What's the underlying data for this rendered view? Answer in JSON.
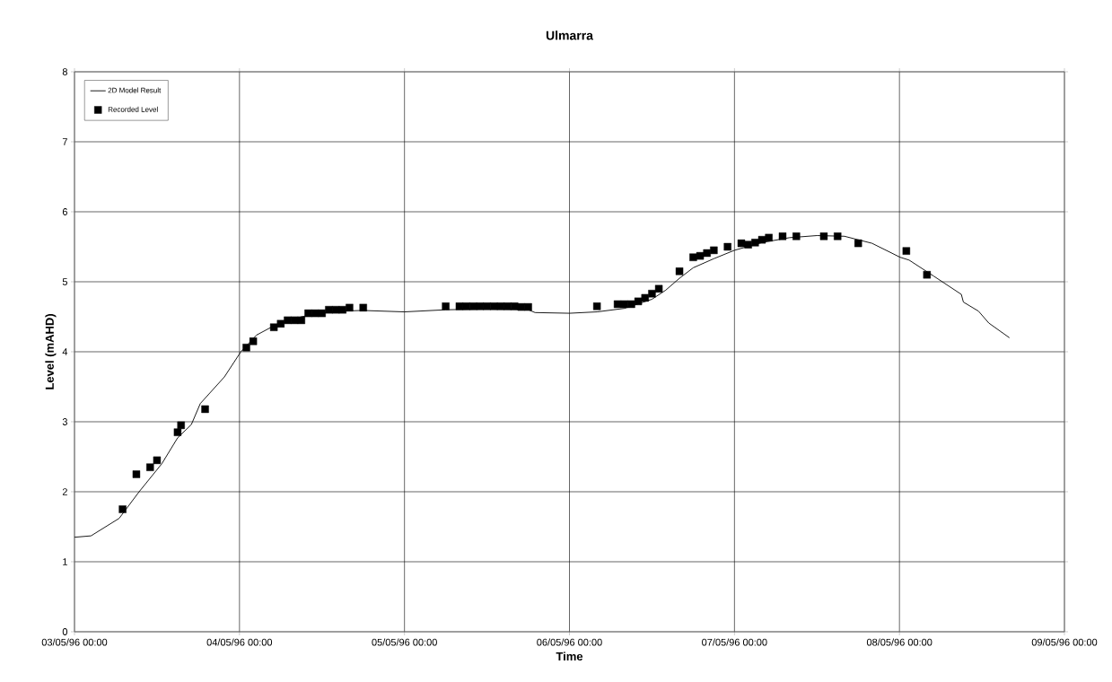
{
  "chart_data": {
    "type": "line",
    "title": "Ulmarra",
    "xlabel": "Time",
    "ylabel": "Level (mAHD)",
    "xlim": [
      "1996-05-03T00:00",
      "1996-05-09T00:00"
    ],
    "xticks": [
      {
        "value": "1996-05-03T00:00",
        "label": "03/05/96 00:00"
      },
      {
        "value": "1996-05-04T00:00",
        "label": "04/05/96 00:00"
      },
      {
        "value": "1996-05-05T00:00",
        "label": "05/05/96 00:00"
      },
      {
        "value": "1996-05-06T00:00",
        "label": "06/05/96 00:00"
      },
      {
        "value": "1996-05-07T00:00",
        "label": "07/05/96 00:00"
      },
      {
        "value": "1996-05-08T00:00",
        "label": "08/05/96 00:00"
      },
      {
        "value": "1996-05-09T00:00",
        "label": "09/05/96 00:00"
      }
    ],
    "ylim": [
      0,
      8
    ],
    "yticks": [
      0,
      1,
      2,
      3,
      4,
      5,
      6,
      7,
      8
    ],
    "grid": true,
    "legend": "top left",
    "series": [
      {
        "name": "2D Model Result",
        "type": "line",
        "marker": "none",
        "color": "#000000",
        "x": [
          "1996-05-03T00:00",
          "1996-05-03T02:24",
          "1996-05-03T06:30",
          "1996-05-03T09:24",
          "1996-05-03T12:42",
          "1996-05-03T15:00",
          "1996-05-03T17:00",
          "1996-05-03T18:18",
          "1996-05-03T21:48",
          "1996-05-04T00:12",
          "1996-05-04T02:30",
          "1996-05-04T05:00",
          "1996-05-04T09:00",
          "1996-05-04T14:00",
          "1996-05-04T18:00",
          "1996-05-05T00:00",
          "1996-05-05T06:00",
          "1996-05-05T12:00",
          "1996-05-05T18:00",
          "1996-05-05T19:00",
          "1996-05-06T00:00",
          "1996-05-06T04:00",
          "1996-05-06T08:00",
          "1996-05-06T12:00",
          "1996-05-06T14:00",
          "1996-05-06T16:00",
          "1996-05-06T18:00",
          "1996-05-06T21:00",
          "1996-05-07T00:00",
          "1996-05-07T04:00",
          "1996-05-07T08:00",
          "1996-05-07T12:00",
          "1996-05-07T16:00",
          "1996-05-07T20:00",
          "1996-05-08T00:06",
          "1996-05-08T01:24",
          "1996-05-08T05:00",
          "1996-05-08T09:00",
          "1996-05-08T09:18",
          "1996-05-08T11:30",
          "1996-05-08T13:00",
          "1996-05-08T16:00"
        ],
        "values": [
          1.35,
          1.37,
          1.62,
          2.0,
          2.4,
          2.77,
          2.96,
          3.26,
          3.64,
          4.0,
          4.24,
          4.37,
          4.5,
          4.58,
          4.59,
          4.57,
          4.6,
          4.61,
          4.6,
          4.56,
          4.55,
          4.57,
          4.62,
          4.75,
          4.88,
          5.05,
          5.2,
          5.33,
          5.45,
          5.56,
          5.63,
          5.66,
          5.65,
          5.55,
          5.35,
          5.31,
          5.08,
          4.82,
          4.71,
          4.58,
          4.41,
          4.2
        ]
      },
      {
        "name": "Recorded Level",
        "type": "scatter",
        "marker": "square",
        "color": "#000000",
        "x": [
          "1996-05-03T07:00",
          "1996-05-03T09:00",
          "1996-05-03T11:00",
          "1996-05-03T12:00",
          "1996-05-03T15:00",
          "1996-05-03T15:30",
          "1996-05-03T19:00",
          "1996-05-04T01:00",
          "1996-05-04T02:00",
          "1996-05-04T05:00",
          "1996-05-04T06:00",
          "1996-05-04T07:00",
          "1996-05-04T08:00",
          "1996-05-04T09:00",
          "1996-05-04T10:00",
          "1996-05-04T11:00",
          "1996-05-04T12:00",
          "1996-05-04T13:00",
          "1996-05-04T14:00",
          "1996-05-04T15:00",
          "1996-05-04T16:00",
          "1996-05-04T18:00",
          "1996-05-05T06:00",
          "1996-05-05T08:00",
          "1996-05-05T09:00",
          "1996-05-05T10:00",
          "1996-05-05T11:00",
          "1996-05-05T12:00",
          "1996-05-05T13:00",
          "1996-05-05T14:00",
          "1996-05-05T15:00",
          "1996-05-05T16:00",
          "1996-05-05T17:00",
          "1996-05-05T18:00",
          "1996-05-06T04:00",
          "1996-05-06T07:00",
          "1996-05-06T08:00",
          "1996-05-06T09:00",
          "1996-05-06T10:00",
          "1996-05-06T11:00",
          "1996-05-06T12:00",
          "1996-05-06T13:00",
          "1996-05-06T16:00",
          "1996-05-06T18:00",
          "1996-05-06T19:00",
          "1996-05-06T20:00",
          "1996-05-06T21:00",
          "1996-05-06T23:00",
          "1996-05-07T01:00",
          "1996-05-07T02:00",
          "1996-05-07T03:00",
          "1996-05-07T04:00",
          "1996-05-07T05:00",
          "1996-05-07T07:00",
          "1996-05-07T09:00",
          "1996-05-07T13:00",
          "1996-05-07T15:00",
          "1996-05-07T18:00",
          "1996-05-08T01:00",
          "1996-05-08T04:00"
        ],
        "values": [
          1.75,
          2.25,
          2.35,
          2.45,
          2.85,
          2.95,
          3.18,
          4.06,
          4.15,
          4.35,
          4.4,
          4.45,
          4.45,
          4.45,
          4.55,
          4.55,
          4.55,
          4.6,
          4.6,
          4.6,
          4.63,
          4.63,
          4.65,
          4.65,
          4.65,
          4.65,
          4.65,
          4.65,
          4.65,
          4.65,
          4.65,
          4.65,
          4.64,
          4.64,
          4.65,
          4.68,
          4.68,
          4.68,
          4.72,
          4.77,
          4.83,
          4.9,
          5.15,
          5.35,
          5.37,
          5.41,
          5.45,
          5.5,
          5.55,
          5.53,
          5.56,
          5.6,
          5.63,
          5.65,
          5.65,
          5.65,
          5.65,
          5.55,
          5.44,
          5.1
        ]
      }
    ]
  }
}
